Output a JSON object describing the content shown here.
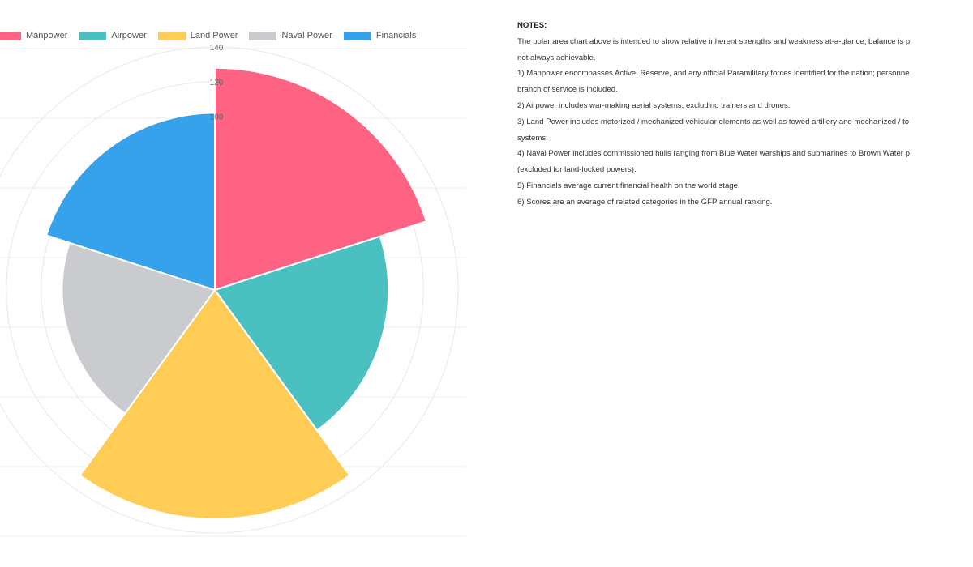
{
  "chart_data": {
    "type": "polarArea",
    "legend_position": "top",
    "r_ticks": [
      140,
      120,
      100
    ],
    "r_max": 140,
    "grid": true,
    "series": [
      {
        "name": "Manpower",
        "value": 128,
        "color": "#ff6384"
      },
      {
        "name": "Airpower",
        "value": 100,
        "color": "#4bc0c0"
      },
      {
        "name": "Land Power",
        "value": 132,
        "color": "#ffcd56"
      },
      {
        "name": "Naval Power",
        "value": 88,
        "color": "#c9cbcf"
      },
      {
        "name": "Financials",
        "value": 102,
        "color": "#36a2eb"
      }
    ]
  },
  "notes": {
    "title": "NOTES:",
    "lines": [
      "The polar area chart above is intended to show relative inherent strengths and weakness at-a-glance; balance is p",
      "not always achievable.",
      "1) Manpower encompasses Active, Reserve, and any official Paramilitary forces identified for the nation; personne",
      "branch of service is included.",
      "2) Airpower includes war-making aerial systems, excluding trainers and drones.",
      "3) Land Power includes motorized / mechanized vehicular elements as well as towed artillery and mechanized / to",
      "systems.",
      "4) Naval Power includes commissioned hulls ranging from Blue Water warships and submarines to Brown Water p",
      "(excluded for land-locked powers).",
      "5) Financials average current financial health on the world stage.",
      "6) Scores are an average of related categories in the GFP annual ranking."
    ]
  }
}
